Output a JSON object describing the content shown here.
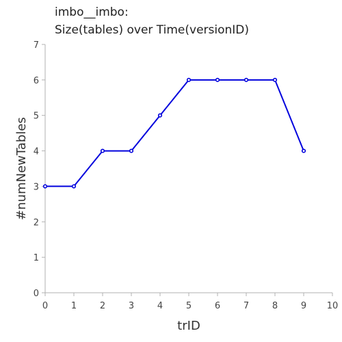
{
  "chart_data": {
    "type": "line",
    "title_lines": [
      "imbo__imbo:",
      "Size(tables) over Time(versionID)"
    ],
    "xlabel": "trID",
    "ylabel": "#numNewTables",
    "xlim": [
      0,
      10
    ],
    "ylim": [
      0,
      7
    ],
    "xticks": [
      0,
      1,
      2,
      3,
      4,
      5,
      6,
      7,
      8,
      9,
      10
    ],
    "yticks": [
      0,
      1,
      2,
      3,
      4,
      5,
      6,
      7
    ],
    "grid": false,
    "series": [
      {
        "color": "#0000dd",
        "x": [
          0,
          1,
          2,
          3,
          4,
          5,
          6,
          7,
          8,
          9
        ],
        "y": [
          3,
          3,
          4,
          4,
          5,
          6,
          6,
          6,
          6,
          4
        ]
      }
    ]
  }
}
